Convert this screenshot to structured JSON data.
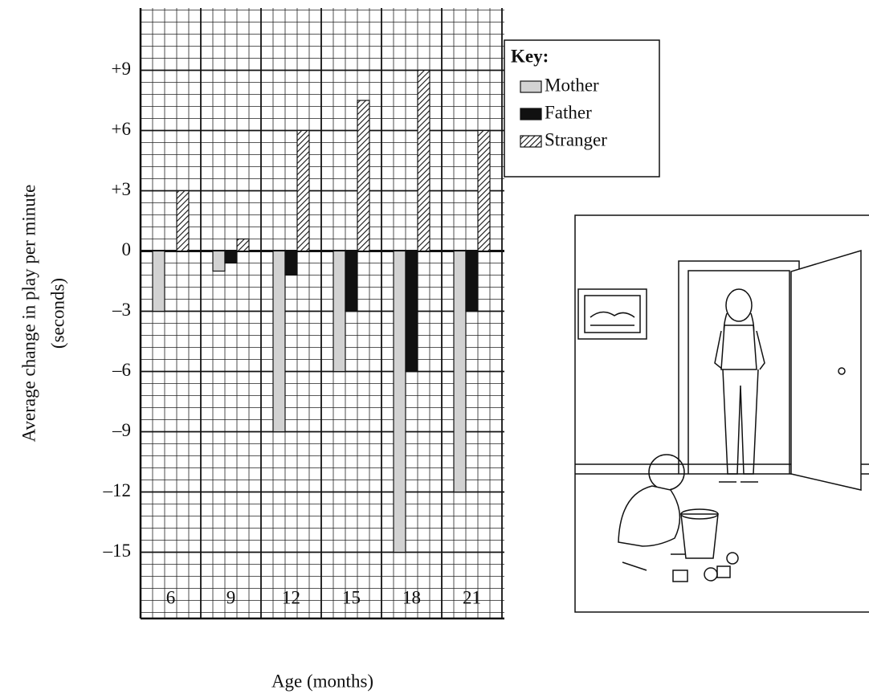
{
  "chart_data": {
    "type": "bar",
    "ylabel": [
      "Average change in play per minute",
      "(seconds)"
    ],
    "xlabel": "Age (months)",
    "categories": [
      "6",
      "9",
      "12",
      "15",
      "18",
      "21"
    ],
    "series": [
      {
        "name": "Mother",
        "color": "#d2d2d2",
        "values": [
          -3,
          -1,
          -9,
          -6,
          -15,
          -12
        ]
      },
      {
        "name": "Father",
        "color": "#111111",
        "values": [
          0,
          -0.6,
          -1.2,
          -3,
          -6,
          -3
        ]
      },
      {
        "name": "Stranger",
        "color": "#ffffff",
        "pattern": "hatch",
        "values": [
          3,
          0.6,
          6,
          7.5,
          9,
          6
        ]
      }
    ],
    "legend_title": "Key:",
    "legend": "upper right",
    "ylim": [
      -18.3,
      12.1
    ],
    "yticks": [
      {
        "value": 9,
        "label": "+9"
      },
      {
        "value": 6,
        "label": "+6"
      },
      {
        "value": 3,
        "label": "+3"
      },
      0,
      {
        "value": -3,
        "label": "–3"
      },
      {
        "value": -6,
        "label": "–6"
      },
      {
        "value": -9,
        "label": "–9"
      },
      {
        "value": -12,
        "label": "–12"
      },
      {
        "value": -15,
        "label": "–15"
      }
    ],
    "grid": true
  }
}
